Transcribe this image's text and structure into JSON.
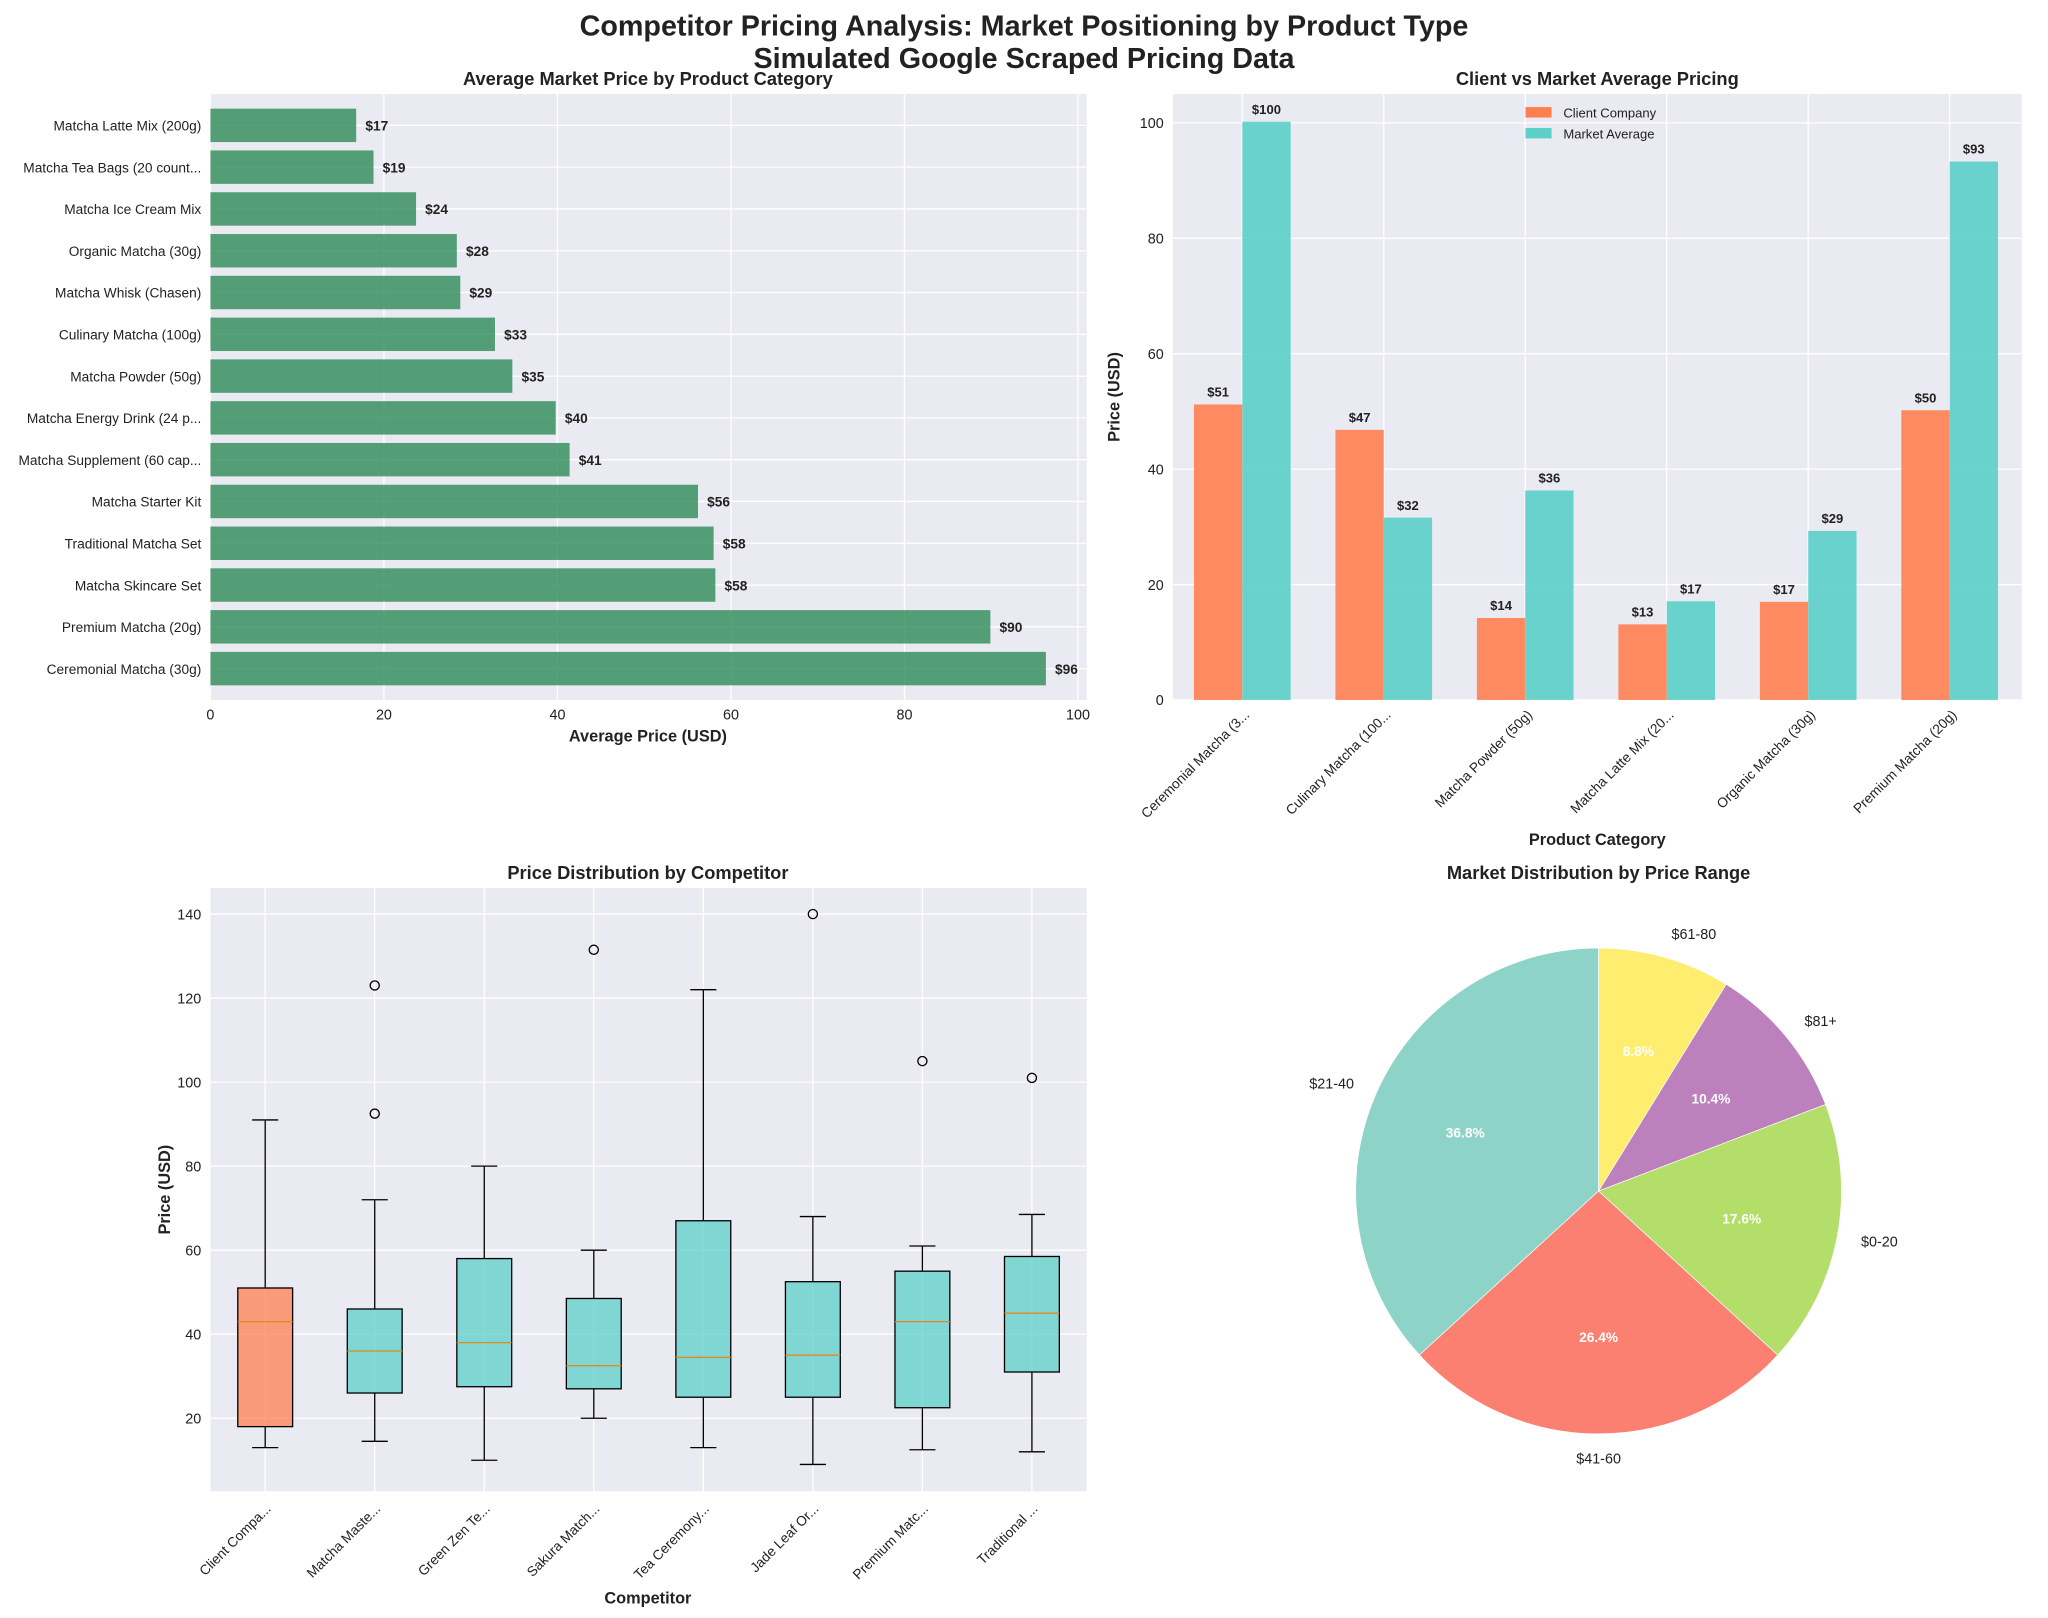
{
  "title": "Competitor Pricing Analysis: Market Positioning by Product Type",
  "subtitle": "Simulated Google Scraped Pricing Data",
  "chart_data": [
    {
      "type": "bar",
      "orientation": "horizontal",
      "title": "Average Market Price by Product Category",
      "xlabel": "Average Price (USD)",
      "xlim": [
        0,
        101
      ],
      "xticks": [
        0,
        20,
        40,
        60,
        80,
        100
      ],
      "grid": true,
      "color": "#2e8b57",
      "categories": [
        "Matcha Latte Mix (200g)",
        "Matcha Tea Bags (20 count...",
        "Matcha Ice Cream Mix",
        "Organic Matcha (30g)",
        "Matcha Whisk (Chasen)",
        "Culinary Matcha (100g)",
        "Matcha Powder (50g)",
        "Matcha Energy Drink (24 p...",
        "Matcha Supplement (60 cap...",
        "Matcha Starter Kit",
        "Traditional Matcha Set",
        "Matcha Skincare Set",
        "Premium Matcha (20g)",
        "Ceremonial Matcha (30g)"
      ],
      "values": [
        16.8,
        18.8,
        23.7,
        28.4,
        28.8,
        32.8,
        34.8,
        39.8,
        41.4,
        56.2,
        58.0,
        58.2,
        89.9,
        96.3
      ],
      "data_labels": [
        "$17",
        "$19",
        "$24",
        "$28",
        "$29",
        "$33",
        "$35",
        "$40",
        "$41",
        "$56",
        "$58",
        "$58",
        "$90",
        "$96"
      ]
    },
    {
      "type": "bar",
      "title": "Client vs Market Average Pricing",
      "xlabel": "Product Category",
      "ylabel": "Price (USD)",
      "ylim": [
        0,
        105
      ],
      "yticks": [
        0,
        20,
        40,
        60,
        80,
        100
      ],
      "grid": true,
      "legend": "top-center",
      "categories": [
        "Ceremonial Matcha (3...",
        "Culinary Matcha (100...",
        "Matcha Powder (50g)",
        "Matcha Latte Mix (20...",
        "Organic Matcha (30g)",
        "Premium Matcha (20g)"
      ],
      "series": [
        {
          "name": "Client Company",
          "color": "#ff7f50",
          "values": [
            51.2,
            46.8,
            14.2,
            13.1,
            17.0,
            50.2
          ],
          "data_labels": [
            "$51",
            "$47",
            "$14",
            "$13",
            "$17",
            "$50"
          ]
        },
        {
          "name": "Market Average",
          "color": "#5ccfc8",
          "values": [
            100.2,
            31.6,
            36.3,
            17.1,
            29.3,
            93.3
          ],
          "data_labels": [
            "$100",
            "$32",
            "$36",
            "$17",
            "$29",
            "$93"
          ]
        }
      ]
    },
    {
      "type": "box",
      "title": "Price Distribution by Competitor",
      "xlabel": "Competitor",
      "ylabel": "Price (USD)",
      "ylim": [
        2.6,
        146.2
      ],
      "yticks": [
        20,
        40,
        60,
        80,
        100,
        120,
        140
      ],
      "grid": true,
      "categories": [
        "Client Compa...",
        "Matcha Maste...",
        "Green Zen Te...",
        "Sakura Match...",
        "Tea Ceremony...",
        "Jade Leaf Or...",
        "Premium Matc...",
        "Traditional ..."
      ],
      "colors": [
        "#ff7f50",
        "#5ccfc8",
        "#5ccfc8",
        "#5ccfc8",
        "#5ccfc8",
        "#5ccfc8",
        "#5ccfc8",
        "#5ccfc8"
      ],
      "boxes": [
        {
          "whislo": 13,
          "q1": 18,
          "med": 43,
          "q3": 51,
          "whishi": 91,
          "fliers": []
        },
        {
          "whislo": 14.5,
          "q1": 26,
          "med": 36,
          "q3": 46,
          "whishi": 72,
          "fliers": [
            92.5,
            123
          ]
        },
        {
          "whislo": 10,
          "q1": 27.5,
          "med": 38,
          "q3": 58,
          "whishi": 80,
          "fliers": []
        },
        {
          "whislo": 20,
          "q1": 27,
          "med": 32.5,
          "q3": 48.5,
          "whishi": 60,
          "fliers": [
            131.5
          ]
        },
        {
          "whislo": 13,
          "q1": 25,
          "med": 34.5,
          "q3": 67,
          "whishi": 122,
          "fliers": []
        },
        {
          "whislo": 9,
          "q1": 25,
          "med": 35,
          "q3": 52.5,
          "whishi": 68,
          "fliers": [
            140
          ]
        },
        {
          "whislo": 12.5,
          "q1": 22.5,
          "med": 43,
          "q3": 55,
          "whishi": 61,
          "fliers": [
            105
          ]
        },
        {
          "whislo": 12,
          "q1": 31,
          "med": 45,
          "q3": 58.5,
          "whishi": 68.5,
          "fliers": [
            101
          ]
        }
      ]
    },
    {
      "type": "pie",
      "title": "Market Distribution by Price Range",
      "start_angle": 90,
      "labels": [
        "$21-40",
        "$41-60",
        "$0-20",
        "$81+",
        "$61-80"
      ],
      "values": [
        36.8,
        26.4,
        17.6,
        10.4,
        8.8
      ],
      "pct_labels": [
        "36.8%",
        "26.4%",
        "17.6%",
        "10.4%",
        "8.8%"
      ],
      "colors": [
        "#8dd3c7",
        "#fb8072",
        "#b3de69",
        "#bc80bd",
        "#ffed6f"
      ]
    }
  ]
}
